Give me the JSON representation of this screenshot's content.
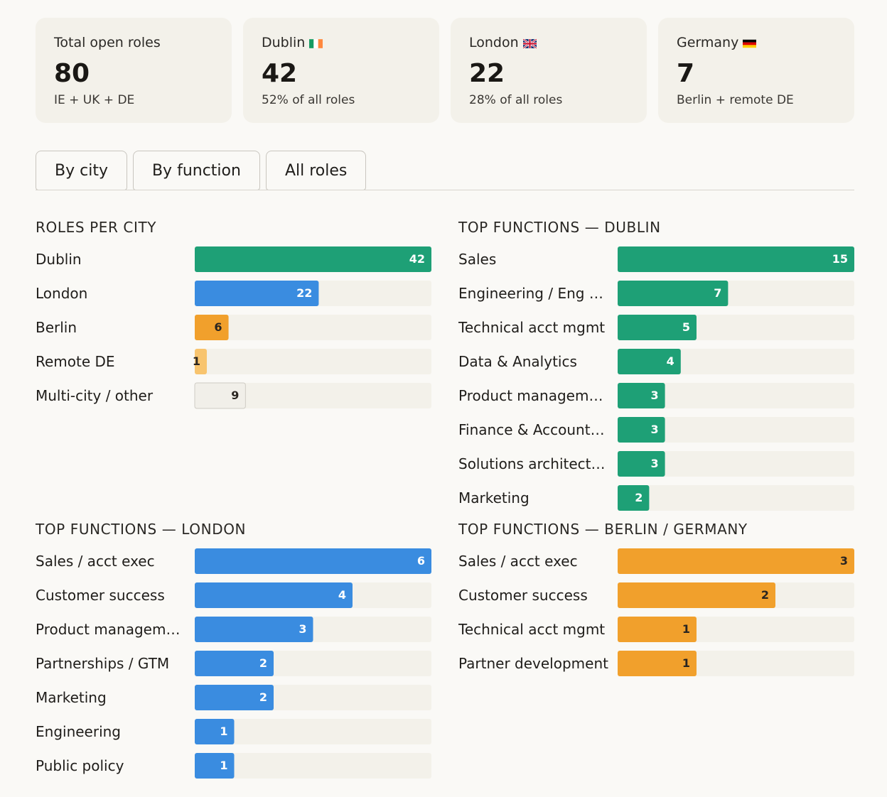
{
  "summary": {
    "total": {
      "label": "Total open roles",
      "value": "80",
      "sub": "IE + UK + DE"
    },
    "dublin": {
      "label": "Dublin",
      "value": "42",
      "sub": "52% of all roles"
    },
    "london": {
      "label": "London",
      "value": "22",
      "sub": "28% of all roles"
    },
    "germany": {
      "label": "Germany",
      "value": "7",
      "sub": "Berlin + remote DE"
    }
  },
  "tabs": [
    "By city",
    "By function",
    "All roles"
  ],
  "colors": {
    "green": "#1ea076",
    "blue": "#3a8ce0",
    "orange": "#f1a02c",
    "light_orange": "#f8c46e",
    "track": "#f3f1ea"
  },
  "chart_data": [
    {
      "type": "bar",
      "title": "ROLES PER CITY",
      "categories": [
        "Dublin",
        "London",
        "Berlin",
        "Remote DE",
        "Multi-city / other"
      ],
      "values": [
        42,
        22,
        6,
        1,
        9
      ],
      "max": 42,
      "colors": [
        "#1ea076",
        "#3a8ce0",
        "#f1a02c",
        "#f8c46e",
        "#f1efe9"
      ]
    },
    {
      "type": "bar",
      "title": "TOP FUNCTIONS — DUBLIN",
      "categories": [
        "Sales",
        "Engineering / Eng …",
        "Technical acct mgmt",
        "Data & Analytics",
        "Product managem…",
        "Finance & Account…",
        "Solutions architect…",
        "Marketing"
      ],
      "values": [
        15,
        7,
        5,
        4,
        3,
        3,
        3,
        2
      ],
      "max": 15,
      "color": "#1ea076"
    },
    {
      "type": "bar",
      "title": "TOP FUNCTIONS — LONDON",
      "categories": [
        "Sales / acct exec",
        "Customer success",
        "Product managem…",
        "Partnerships / GTM",
        "Marketing",
        "Engineering",
        "Public policy"
      ],
      "values": [
        6,
        4,
        3,
        2,
        2,
        1,
        1
      ],
      "max": 6,
      "color": "#3a8ce0"
    },
    {
      "type": "bar",
      "title": "TOP FUNCTIONS — BERLIN / GERMANY",
      "categories": [
        "Sales / acct exec",
        "Customer success",
        "Technical acct mgmt",
        "Partner development"
      ],
      "values": [
        3,
        2,
        1,
        1
      ],
      "max": 3,
      "color": "#f1a02c"
    }
  ]
}
